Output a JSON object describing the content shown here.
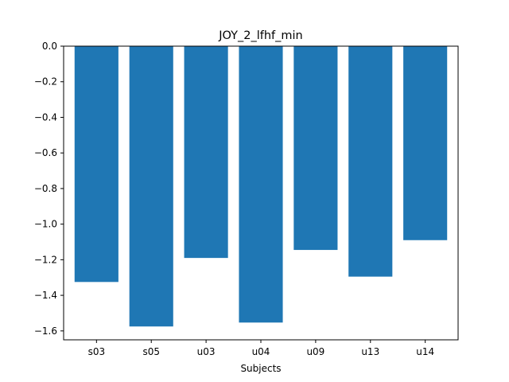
{
  "chart_data": {
    "type": "bar",
    "title": "JOY_2_lfhf_min",
    "xlabel": "Subjects",
    "ylabel": "",
    "categories": [
      "s03",
      "s05",
      "u03",
      "u04",
      "u09",
      "u13",
      "u14"
    ],
    "values": [
      -1.325,
      -1.575,
      -1.19,
      -1.553,
      -1.145,
      -1.295,
      -1.09
    ],
    "ylim": [
      -1.65,
      0.0
    ],
    "yticks": [
      0.0,
      -0.2,
      -0.4,
      -0.6,
      -0.8,
      -1.0,
      -1.2,
      -1.4,
      -1.6
    ],
    "ytick_labels": [
      "0.0",
      "−0.2",
      "−0.4",
      "−0.6",
      "−0.8",
      "−1.0",
      "−1.2",
      "−1.4",
      "−1.6"
    ],
    "bar_color": "#1f77b4",
    "grid": false,
    "legend": "none"
  }
}
